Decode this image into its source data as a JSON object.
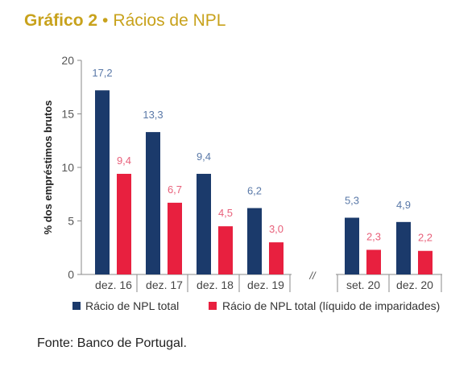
{
  "header": {
    "title_bold": "Gráfico 2",
    "separator": "•",
    "title_rest": "Rácios de NPL"
  },
  "footer": {
    "source": "Fonte: Banco de Portugal."
  },
  "colors": {
    "title": "#c8a21c",
    "series1": "#1b3a6b",
    "series2": "#e8203f",
    "label1": "#5a79a8",
    "label2": "#e8607a"
  },
  "chart_data": {
    "type": "bar",
    "categories": [
      "dez. 16",
      "dez. 17",
      "dez. 18",
      "dez. 19",
      "set. 20",
      "dez. 20"
    ],
    "axis_break_marker": "//",
    "ylabel": "% dos empréstimos brutos",
    "ylim": [
      0,
      20
    ],
    "yticks": [
      "0",
      "5",
      "10",
      "15",
      "20"
    ],
    "series": [
      {
        "name": "Rácio de NPL total",
        "values": [
          17.2,
          13.3,
          9.4,
          6.2,
          5.3,
          4.9
        ],
        "labels": [
          "17,2",
          "13,3",
          "9,4",
          "6,2",
          "5,3",
          "4,9"
        ]
      },
      {
        "name": "Rácio de NPL total (líquido de imparidades)",
        "values": [
          9.4,
          6.7,
          4.5,
          3.0,
          2.3,
          2.2
        ],
        "labels": [
          "9,4",
          "6,7",
          "4,5",
          "3,0",
          "2,3",
          "2,2"
        ]
      }
    ],
    "legend": "bottom",
    "grid": false
  }
}
